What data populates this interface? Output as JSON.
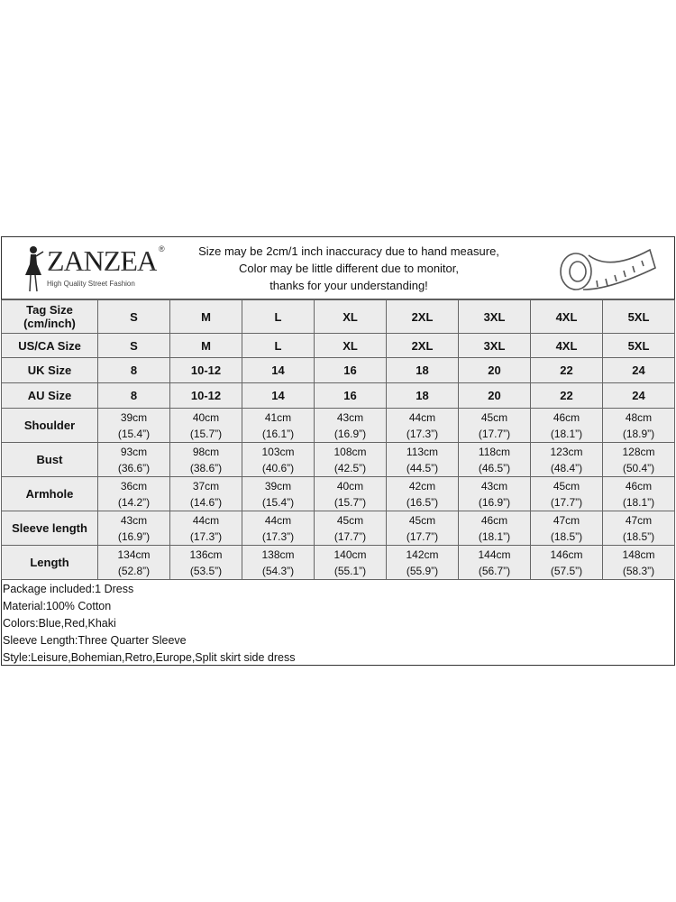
{
  "brand": {
    "name": "ZANZEA",
    "registered": "®",
    "tagline": "High Quality Street Fashion"
  },
  "notice": [
    "Size may be 2cm/1 inch inaccuracy due to hand measure,",
    "Color may be little different due to monitor,",
    "thanks for your understanding!"
  ],
  "icons": {
    "logo": "woman-silhouette-logo",
    "tape": "measuring-tape-icon"
  },
  "size_rows": [
    {
      "label": "Tag Size\n(cm/inch)",
      "values": [
        "S",
        "M",
        "L",
        "XL",
        "2XL",
        "3XL",
        "4XL",
        "5XL"
      ]
    },
    {
      "label": "US/CA Size",
      "values": [
        "S",
        "M",
        "L",
        "XL",
        "2XL",
        "3XL",
        "4XL",
        "5XL"
      ]
    },
    {
      "label": "UK Size",
      "values": [
        "8",
        "10-12",
        "14",
        "16",
        "18",
        "20",
        "22",
        "24"
      ]
    },
    {
      "label": "AU Size",
      "values": [
        "8",
        "10-12",
        "14",
        "16",
        "18",
        "20",
        "22",
        "24"
      ]
    }
  ],
  "measure_rows": [
    {
      "label": "Shoulder",
      "cm": [
        "39cm",
        "40cm",
        "41cm",
        "43cm",
        "44cm",
        "45cm",
        "46cm",
        "48cm"
      ],
      "inch": [
        "(15.4”)",
        "(15.7”)",
        "(16.1”)",
        "(16.9”)",
        "(17.3”)",
        "(17.7”)",
        "(18.1”)",
        "(18.9”)"
      ]
    },
    {
      "label": "Bust",
      "cm": [
        "93cm",
        "98cm",
        "103cm",
        "108cm",
        "113cm",
        "118cm",
        "123cm",
        "128cm"
      ],
      "inch": [
        "(36.6”)",
        "(38.6”)",
        "(40.6”)",
        "(42.5”)",
        "(44.5”)",
        "(46.5”)",
        "(48.4”)",
        "(50.4”)"
      ]
    },
    {
      "label": "Armhole",
      "cm": [
        "36cm",
        "37cm",
        "39cm",
        "40cm",
        "42cm",
        "43cm",
        "45cm",
        "46cm"
      ],
      "inch": [
        "(14.2”)",
        "(14.6”)",
        "(15.4”)",
        "(15.7”)",
        "(16.5”)",
        "(16.9”)",
        "(17.7”)",
        "(18.1”)"
      ]
    },
    {
      "label": "Sleeve length",
      "cm": [
        "43cm",
        "44cm",
        "44cm",
        "45cm",
        "45cm",
        "46cm",
        "47cm",
        "47cm"
      ],
      "inch": [
        "(16.9”)",
        "(17.3”)",
        "(17.3”)",
        "(17.7”)",
        "(17.7”)",
        "(18.1”)",
        "(18.5”)",
        "(18.5”)"
      ]
    },
    {
      "label": "Length",
      "cm": [
        "134cm",
        "136cm",
        "138cm",
        "140cm",
        "142cm",
        "144cm",
        "146cm",
        "148cm"
      ],
      "inch": [
        "(52.8”)",
        "(53.5”)",
        "(54.3”)",
        "(55.1”)",
        "(55.9”)",
        "(56.7”)",
        "(57.5”)",
        "(58.3”)"
      ]
    }
  ],
  "notes": [
    "Package included:1 Dress",
    "Material:100% Cotton",
    "Colors:Blue,Red,Khaki",
    "Sleeve Length:Three Quarter Sleeve",
    "Style:Leisure,Bohemian,Retro,Europe,Split skirt side dress"
  ]
}
